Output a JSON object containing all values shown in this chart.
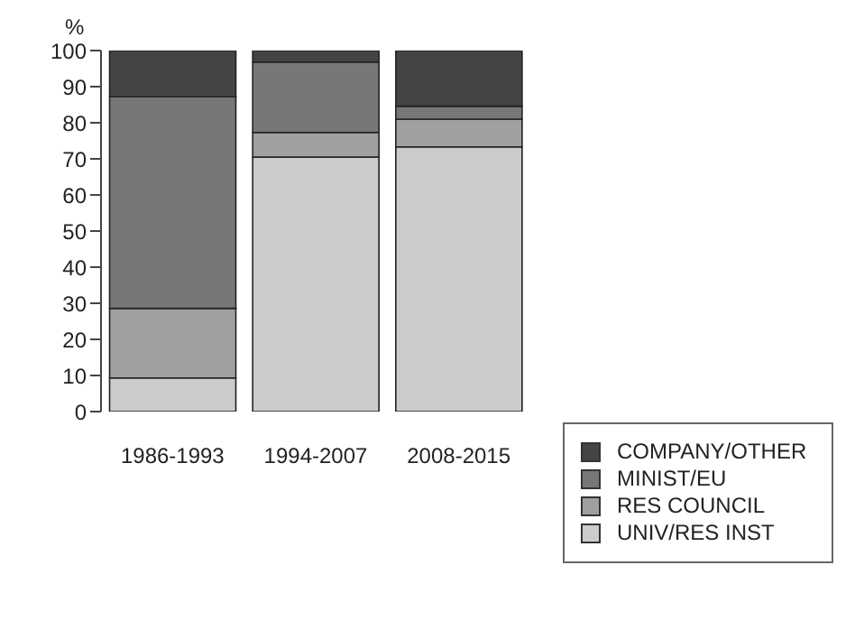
{
  "chart_data": {
    "type": "bar",
    "stacked": true,
    "ylabel": "%",
    "categories": [
      "1986-1993",
      "1994-2007",
      "2008-2015"
    ],
    "series": [
      {
        "name": "UNIV/RES INST",
        "color": "#cccccc",
        "values": [
          9.3,
          70.5,
          73.3
        ]
      },
      {
        "name": "RES COUNCIL",
        "color": "#a0a0a0",
        "values": [
          19.3,
          6.8,
          7.7
        ]
      },
      {
        "name": "MINIST/EU",
        "color": "#777777",
        "values": [
          58.6,
          19.5,
          3.6
        ]
      },
      {
        "name": "COMPANY/OTHER",
        "color": "#444444",
        "values": [
          12.8,
          3.2,
          15.4
        ]
      }
    ],
    "ylim": [
      0,
      100
    ],
    "yticks": [
      0,
      10,
      20,
      30,
      40,
      50,
      60,
      70,
      80,
      90,
      100
    ],
    "grid": false,
    "legend": "bottom right"
  }
}
